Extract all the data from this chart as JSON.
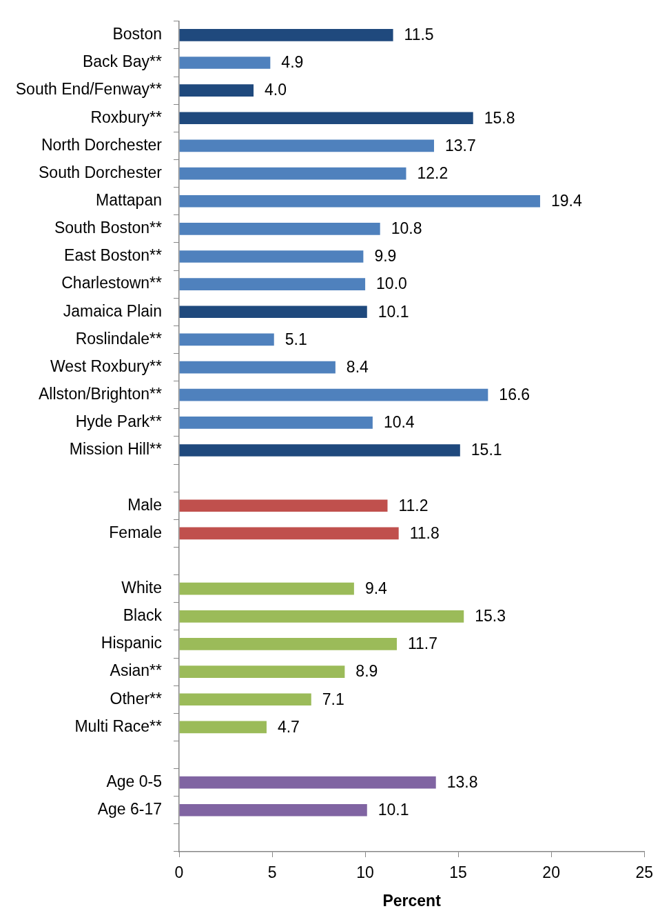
{
  "chart_data": {
    "type": "bar",
    "orientation": "horizontal",
    "categories": [
      "Boston",
      "Back Bay**",
      "South End/Fenway**",
      "Roxbury**",
      "North Dorchester",
      "South Dorchester",
      "Mattapan",
      "South Boston**",
      "East Boston**",
      "Charlestown**",
      "Jamaica Plain",
      "Roslindale**",
      "West Roxbury**",
      "Allston/Brighton**",
      "Hyde Park**",
      "Mission Hill**",
      null,
      "Male",
      "Female",
      null,
      "White",
      "Black",
      "Hispanic",
      "Asian**",
      "Other**",
      "Multi Race**",
      null,
      "Age 0-5",
      "Age 6-17",
      null
    ],
    "values": [
      11.5,
      4.9,
      4.0,
      15.8,
      13.7,
      12.2,
      19.4,
      10.8,
      9.9,
      10.0,
      10.1,
      5.1,
      8.4,
      16.6,
      10.4,
      15.1,
      null,
      11.2,
      11.8,
      null,
      9.4,
      15.3,
      11.7,
      8.9,
      7.1,
      4.7,
      null,
      13.8,
      10.1,
      null
    ],
    "value_labels": [
      "11.5",
      "4.9",
      "4.0",
      "15.8",
      "13.7",
      "12.2",
      "19.4",
      "10.8",
      "9.9",
      "10.0",
      "10.1",
      "5.1",
      "8.4",
      "16.6",
      "10.4",
      "15.1",
      null,
      "11.2",
      "11.8",
      null,
      "9.4",
      "15.3",
      "11.7",
      "8.9",
      "7.1",
      "4.7",
      null,
      "13.8",
      "10.1",
      null
    ],
    "colors": [
      "#1f497d",
      "#4f81bd",
      "#1f497d",
      "#1f497d",
      "#4f81bd",
      "#4f81bd",
      "#4f81bd",
      "#4f81bd",
      "#4f81bd",
      "#4f81bd",
      "#1f497d",
      "#4f81bd",
      "#4f81bd",
      "#4f81bd",
      "#4f81bd",
      "#1f497d",
      null,
      "#c0504d",
      "#c0504d",
      null,
      "#9bbb59",
      "#9bbb59",
      "#9bbb59",
      "#9bbb59",
      "#9bbb59",
      "#9bbb59",
      null,
      "#8064a2",
      "#8064a2",
      null
    ],
    "xlim": [
      0,
      25
    ],
    "xticks": [
      0,
      5,
      10,
      15,
      20,
      25
    ],
    "xlabel": "Percent",
    "grid": false,
    "legend": false
  }
}
